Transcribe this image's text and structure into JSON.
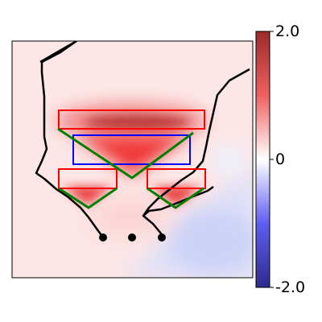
{
  "chart_data": {
    "type": "heatmap",
    "title": "",
    "xlabel": "",
    "ylabel": "",
    "grid": false,
    "colorbar": {
      "min": -2.0,
      "max": 2.0,
      "ticks": [
        2.0,
        0,
        -2.0
      ],
      "tick_labels": [
        "2.0",
        "0",
        "-2.0"
      ],
      "colors": {
        "high": "#b2182b",
        "mid": "#ffffff",
        "low": "#2b2b9b"
      }
    },
    "overlay_colors": {
      "outline": "#000000",
      "red_boxes": "#ff0000",
      "blue_box": "#0000ff",
      "green_triangles": "#008000",
      "markers": "#000000"
    }
  }
}
